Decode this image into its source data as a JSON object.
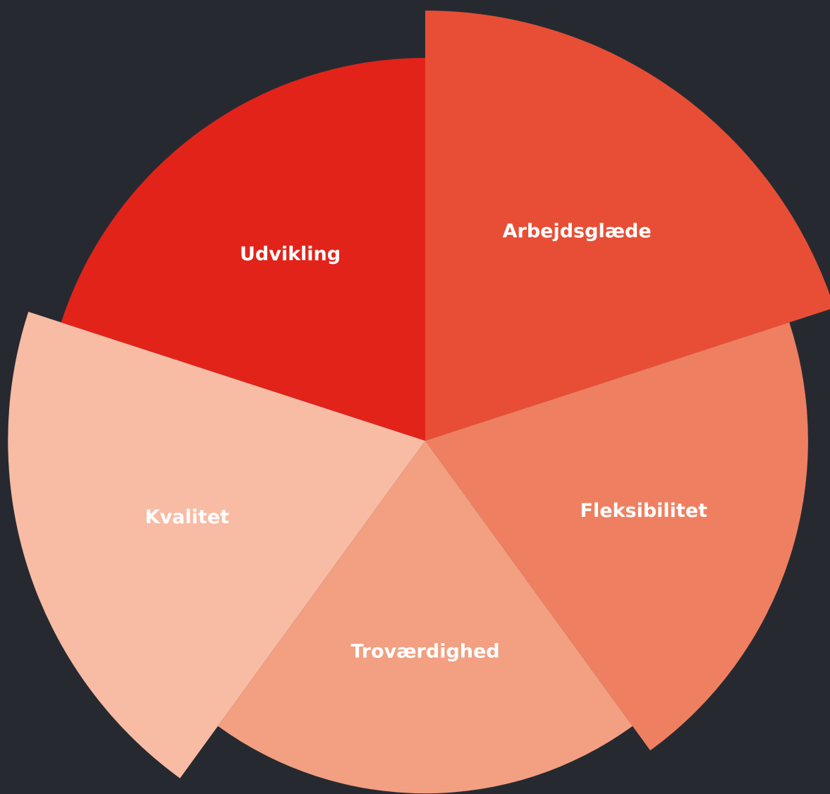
{
  "chart_data": {
    "type": "polarArea",
    "categories": [
      "Arbejdsglæde",
      "Fleksibilitet",
      "Troværdighed",
      "Kvalitet",
      "Udvikling"
    ],
    "values": [
      100,
      89,
      82,
      97,
      89
    ],
    "colors": [
      "#e84e35",
      "#ef7f61",
      "#f29f82",
      "#f8bba4",
      "#e2231a"
    ],
    "rlim": [
      0,
      100
    ]
  }
}
